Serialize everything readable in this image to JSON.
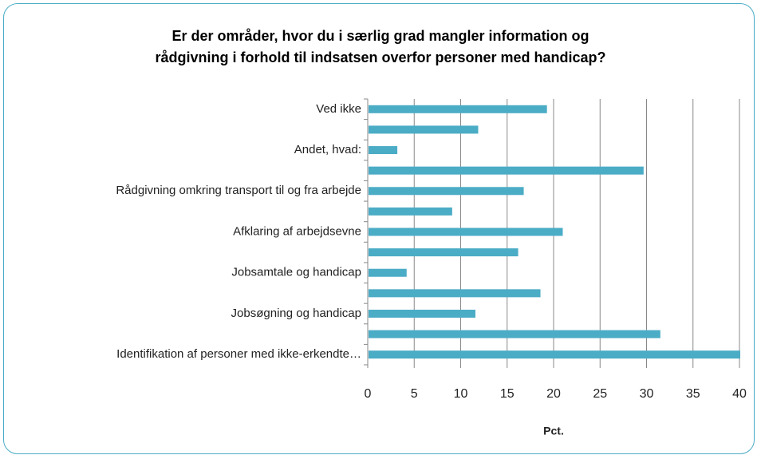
{
  "chart_data": {
    "type": "hbar",
    "title": "Er der områder, hvor du i særlig grad mangler information og\nrådgivning i forhold til indsatsen overfor personer med handicap?",
    "categories": [
      "Ved ikke",
      null,
      "Andet, hvad:",
      null,
      "Rådgivning omkring transport til og fra arbejde",
      null,
      "Afklaring af arbejdsevne",
      null,
      "Jobsamtale og handicap",
      null,
      "Jobsøgning og handicap",
      null,
      "Identifikation af personer med ikke-erkendte…"
    ],
    "values": [
      19.2,
      11.8,
      3.1,
      29.6,
      16.7,
      9.0,
      20.9,
      16.1,
      4.1,
      18.5,
      11.5,
      31.4,
      40
    ],
    "color": "#4bacc6",
    "xlabel": "Pct.",
    "xlim": [
      0,
      40
    ],
    "xticks": [
      0,
      5,
      10,
      15,
      20,
      25,
      30,
      35,
      40
    ],
    "grid": true
  }
}
